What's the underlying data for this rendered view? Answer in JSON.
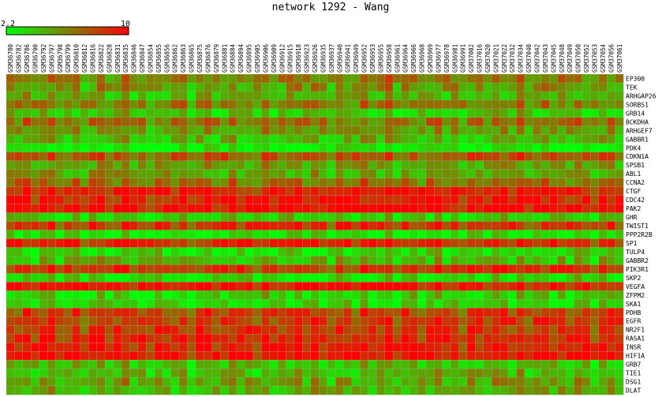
{
  "chart_data": {
    "type": "heatmap",
    "title": "network 1292 - Wang",
    "color_scale": {
      "min": 2.2,
      "max": 10,
      "min_label": "2.2",
      "max_label": "10",
      "low_color": "#00ff00",
      "mid_color": "#808000",
      "high_color": "#ff0000"
    },
    "columns": [
      "GSM36780",
      "GSM36782",
      "GSM36786",
      "GSM36790",
      "GSM36792",
      "GSM36797",
      "GSM36798",
      "GSM36799",
      "GSM36810",
      "GSM36812",
      "GSM36816",
      "GSM36822",
      "GSM36828",
      "GSM36831",
      "GSM36835",
      "GSM36846",
      "GSM36847",
      "GSM36854",
      "GSM36855",
      "GSM36856",
      "GSM36862",
      "GSM36863",
      "GSM36865",
      "GSM36875",
      "GSM36876",
      "GSM36879",
      "GSM36881",
      "GSM36884",
      "GSM36894",
      "GSM36895",
      "GSM36905",
      "GSM36906",
      "GSM36909",
      "GSM36912",
      "GSM36915",
      "GSM36918",
      "GSM36923",
      "GSM36926",
      "GSM36935",
      "GSM36937",
      "GSM36940",
      "GSM36941",
      "GSM36949",
      "GSM36952",
      "GSM36953",
      "GSM36955",
      "GSM36958",
      "GSM36961",
      "GSM36964",
      "GSM36966",
      "GSM36968",
      "GSM36969",
      "GSM36977",
      "GSM36978",
      "GSM36981",
      "GSM36991",
      "GSM37002",
      "GSM37016",
      "GSM37020",
      "GSM37021",
      "GSM37022",
      "GSM37032",
      "GSM37034",
      "GSM37040",
      "GSM37042",
      "GSM37043",
      "GSM37045",
      "GSM37048",
      "GSM37049",
      "GSM37050",
      "GSM37052",
      "GSM37053",
      "GSM37054",
      "GSM37056",
      "GSM37061"
    ],
    "rows": [
      "EP300",
      "TEK",
      "ARHGAP26",
      "SORBS1",
      "GRB14",
      "BCKDHA",
      "ARHGEF7",
      "GABBR1",
      "PDK4",
      "CDKN1A",
      "SPSB1",
      "ABL1",
      "CCNA2",
      "CTGF",
      "CDC42",
      "PAK2",
      "GHR",
      "TWIST1",
      "PPP2R2B",
      "SP1",
      "TULP4",
      "GABBR2",
      "PIK3R1",
      "SKP2",
      "VEGFA",
      "ZFPM2",
      "SKA1",
      "PDHB",
      "EGFR",
      "NR2F1",
      "RASA1",
      "INSR",
      "HIF1A",
      "GRB7",
      "TIE1",
      "DSG1",
      "DLAT"
    ],
    "row_levels": [
      6.0,
      5.4,
      4.6,
      6.2,
      3.8,
      6.4,
      5.2,
      4.4,
      2.6,
      7.4,
      5.0,
      4.8,
      6.6,
      9.2,
      9.0,
      9.6,
      3.8,
      8.4,
      2.8,
      8.8,
      3.4,
      4.4,
      8.4,
      3.2,
      9.4,
      3.6,
      3.4,
      8.0,
      8.2,
      8.4,
      8.8,
      9.0,
      9.4,
      4.2,
      4.4,
      5.0,
      4.6
    ],
    "column_offsets": [
      0.4,
      -0.2,
      0.6,
      -0.4,
      0.2,
      0.8,
      -0.6,
      0.0,
      0.4,
      -0.8,
      0.2,
      0.6,
      -0.2,
      0.0,
      0.8,
      -0.4,
      0.2,
      -0.6,
      0.4,
      0.0,
      -0.2,
      0.6,
      -0.8,
      0.2,
      0.4,
      -0.4,
      0.0,
      0.6,
      -0.2,
      0.2,
      -0.6,
      0.8,
      0.0,
      -0.4,
      0.2,
      0.4,
      -0.2,
      0.6,
      0.0,
      -0.8,
      0.4,
      0.2,
      -0.4,
      0.6,
      0.0,
      -0.2,
      0.8,
      -0.6,
      0.2,
      0.4,
      -0.4,
      0.0,
      0.6,
      -0.2,
      0.2,
      -0.8,
      0.4,
      0.0,
      -0.4,
      0.6,
      0.2,
      -0.2,
      0.8,
      -0.6,
      0.0,
      0.4,
      -0.2,
      0.2,
      -0.4,
      0.6,
      0.0,
      -0.8,
      0.4,
      0.2,
      -0.2
    ],
    "variability": 1.6
  }
}
